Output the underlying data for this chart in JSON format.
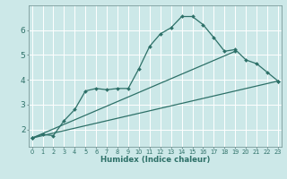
{
  "xlabel": "Humidex (Indice chaleur)",
  "bg_color": "#cce8e8",
  "grid_color": "#ffffff",
  "line_color": "#2d7068",
  "spine_color": "#7a9a9a",
  "x_ticks": [
    0,
    1,
    2,
    3,
    4,
    5,
    6,
    7,
    8,
    9,
    10,
    11,
    12,
    13,
    14,
    15,
    16,
    17,
    18,
    19,
    20,
    21,
    22,
    23
  ],
  "y_ticks": [
    2,
    3,
    4,
    5,
    6
  ],
  "ylim": [
    1.3,
    7.0
  ],
  "xlim": [
    -0.3,
    23.3
  ],
  "curve1_x": [
    0,
    1,
    2,
    3,
    4,
    5,
    6,
    7,
    8,
    9,
    10,
    11,
    12,
    13,
    14,
    15,
    16,
    17,
    18,
    19,
    20,
    21,
    22,
    23
  ],
  "curve1_y": [
    1.65,
    1.8,
    1.75,
    2.35,
    2.8,
    3.55,
    3.65,
    3.6,
    3.65,
    3.65,
    4.45,
    5.35,
    5.85,
    6.1,
    6.55,
    6.55,
    6.22,
    5.7,
    5.15,
    5.22,
    4.8,
    4.65,
    4.3,
    3.95
  ],
  "curve2_x": [
    0,
    19
  ],
  "curve2_y": [
    1.65,
    5.15
  ],
  "curve3_x": [
    0,
    23
  ],
  "curve3_y": [
    1.65,
    3.95
  ],
  "xtick_fontsize": 4.8,
  "ytick_fontsize": 6.5,
  "xlabel_fontsize": 6.2
}
